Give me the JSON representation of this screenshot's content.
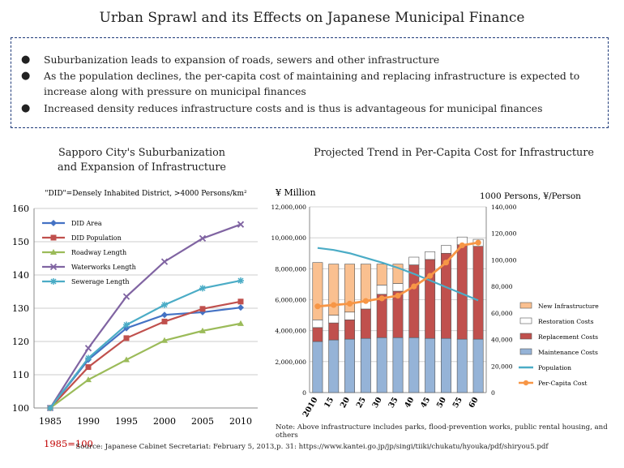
{
  "title": "Urban Sprawl and its Effects on Japanese Municipal Finance",
  "bullets": [
    "Suburbanization leads to expansion of roads, sewers and other infrastructure",
    "As the population declines, the per-capita cost of maintaining and replacing infrastructure is expected to increase along with pressure on municipal finances",
    "Increased density reduces infrastructure costs and is thus is advantageous for municipal finances"
  ],
  "left_chart": {
    "subtitle_line1": "Sapporo City's Suburbanization",
    "subtitle_line2": "and Expansion of Infrastructure",
    "definition": "\"DID\"=Densely Inhabited District, >4000 Persons/km²",
    "base_note": "1985=100"
  },
  "right_chart": {
    "subtitle": "Projected Trend in Per-Capita Cost for Infrastructure",
    "left_unit": "¥ Million",
    "right_unit": "1000 Persons,   ¥/Person"
  },
  "note": "Note: Above infrastructure includes parks, flood-prevention works, public rental housing, and others",
  "source": "Source: Japanese Cabinet Secretariat: February 5, 2013,p. 31: https://www.kantei.go.jp/jp/singi/tiiki/chukatu/hyouka/pdf/shiryou5.pdf",
  "chart_data": [
    {
      "type": "line",
      "x": [
        "1985",
        "1990",
        "1995",
        "2000",
        "2005",
        "2010"
      ],
      "ylim": [
        100,
        160
      ],
      "yticks": [
        "100",
        "110",
        "120",
        "130",
        "140",
        "150",
        "160"
      ],
      "grid": true,
      "legend_position": "top-left",
      "series": [
        {
          "name": "DID Area",
          "color": "#4472c4",
          "marker": "diamond",
          "values": [
            100,
            114.5,
            124,
            128,
            128.8,
            130.2
          ]
        },
        {
          "name": "DID Population",
          "color": "#c0504d",
          "marker": "square",
          "values": [
            100,
            112.3,
            121,
            126,
            129.8,
            132
          ]
        },
        {
          "name": "Roadway Length",
          "color": "#9bbb59",
          "marker": "triangle",
          "values": [
            100,
            108.5,
            114.5,
            120.3,
            123.2,
            125.4
          ]
        },
        {
          "name": "Waterworks Length",
          "color": "#8064a2",
          "marker": "x",
          "values": [
            100,
            118,
            133.5,
            144,
            151,
            155.2
          ]
        },
        {
          "name": "Sewerage Length",
          "color": "#4bacc6",
          "marker": "star",
          "values": [
            100,
            115,
            125,
            131,
            136,
            138.3
          ]
        }
      ]
    },
    {
      "type": "bar",
      "stacked": true,
      "categories": [
        "2010",
        "15",
        "20",
        "25",
        "30",
        "35",
        "40",
        "45",
        "50",
        "55",
        "60"
      ],
      "ylim": [
        0,
        12000000
      ],
      "yticks": [
        "0",
        "2,000,000",
        "4,000,000",
        "6,000,000",
        "8,000,000",
        "10,000,000",
        "12,000,000"
      ],
      "y2lim": [
        0,
        140000
      ],
      "y2ticks": [
        "0",
        "20,000",
        "40,000",
        "60,000",
        "80,000",
        "100,000",
        "120,000",
        "140,000"
      ],
      "legend_position": "right",
      "series": [
        {
          "name": "Maintenance Costs",
          "color": "#95b3d7",
          "values": [
            3300000,
            3400000,
            3450000,
            3500000,
            3550000,
            3550000,
            3550000,
            3500000,
            3500000,
            3450000,
            3450000
          ]
        },
        {
          "name": "Replacement Costs",
          "color": "#c0504d",
          "values": [
            900000,
            1100000,
            1250000,
            1900000,
            2800000,
            3000000,
            4700000,
            5100000,
            5500000,
            6100000,
            6000000
          ]
        },
        {
          "name": "Restoration Costs",
          "color": "#ffffff",
          "values": [
            500000,
            500000,
            500000,
            500000,
            600000,
            500000,
            500000,
            500000,
            500000,
            500000,
            450000
          ]
        },
        {
          "name": "New Infrastructure",
          "color": "#fac090",
          "values": [
            3700000,
            3300000,
            3100000,
            2400000,
            1350000,
            1250000,
            0,
            0,
            0,
            0,
            0
          ]
        }
      ],
      "line_series": [
        {
          "name": "Population",
          "axis": "right",
          "color": "#4bacc6",
          "values": [
            109000,
            107500,
            105000,
            101500,
            98000,
            94000,
            89500,
            84500,
            79500,
            74500,
            69500
          ]
        },
        {
          "name": "Per-Capita Cost",
          "axis": "right",
          "color": "#f79646",
          "values": [
            65000,
            66000,
            67000,
            69000,
            71000,
            73000,
            80000,
            88000,
            98000,
            111000,
            113000
          ]
        }
      ]
    }
  ]
}
